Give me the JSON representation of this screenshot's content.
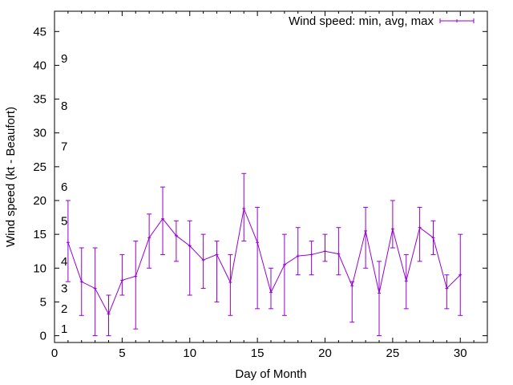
{
  "chart_data": {
    "type": "line",
    "title": "",
    "xlabel": "Day of Month",
    "ylabel": "Wind speed (kt - Beaufort)",
    "xlim": [
      0,
      32
    ],
    "ylim": [
      -1,
      48
    ],
    "xticks": [
      0,
      5,
      10,
      15,
      20,
      25,
      30
    ],
    "yticks": [
      0,
      5,
      10,
      15,
      20,
      25,
      30,
      35,
      40,
      45
    ],
    "grid": false,
    "legend_position": "top-right",
    "color": "#9400d3",
    "beaufort_labels": [
      {
        "label": "1",
        "y": 1
      },
      {
        "label": "2",
        "y": 4
      },
      {
        "label": "3",
        "y": 7
      },
      {
        "label": "4",
        "y": 11
      },
      {
        "label": "5",
        "y": 17
      },
      {
        "label": "6",
        "y": 22
      },
      {
        "label": "7",
        "y": 28
      },
      {
        "label": "8",
        "y": 34
      },
      {
        "label": "9",
        "y": 41
      }
    ],
    "series": [
      {
        "name": "Wind speed: min, avg, max",
        "x": [
          1,
          2,
          3,
          4,
          5,
          6,
          7,
          8,
          9,
          10,
          11,
          12,
          13,
          14,
          15,
          16,
          17,
          18,
          19,
          20,
          21,
          22,
          23,
          24,
          25,
          26,
          27,
          28,
          29,
          30
        ],
        "avg": [
          13.8,
          8.0,
          7.0,
          3.2,
          8.2,
          8.8,
          14.5,
          17.3,
          14.8,
          13.3,
          11.2,
          12.0,
          7.9,
          18.8,
          13.8,
          6.4,
          10.5,
          11.8,
          12.0,
          12.5,
          12.1,
          7.4,
          15.5,
          6.3,
          15.8,
          8.1,
          16.0,
          14.5,
          7.0,
          9.0
        ],
        "min": [
          8,
          3,
          0,
          0,
          6,
          1,
          10,
          12,
          11,
          6,
          7,
          5,
          3,
          14,
          4,
          4,
          3,
          9,
          9,
          11,
          9,
          2,
          10,
          0,
          13,
          4,
          11,
          12,
          4,
          3
        ],
        "max": [
          20,
          13,
          13,
          6,
          12,
          14,
          18,
          22,
          17,
          17,
          15,
          14,
          12,
          24,
          19,
          10,
          15,
          16,
          14,
          15,
          16,
          8,
          19,
          11,
          20,
          12,
          19,
          17,
          9,
          15
        ]
      }
    ]
  }
}
